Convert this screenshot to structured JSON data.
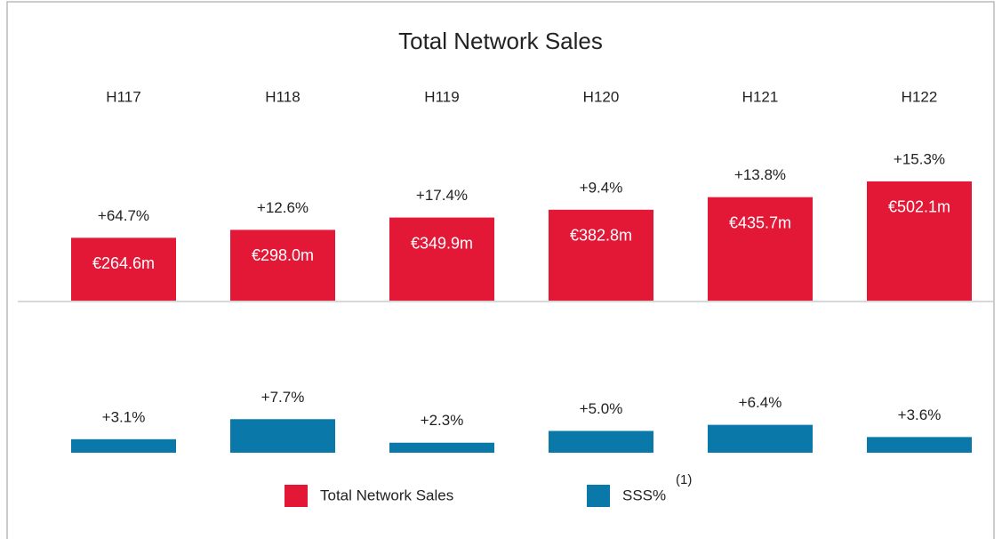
{
  "chart_data": {
    "type": "bar",
    "title": "Total Network Sales",
    "categories": [
      "H117",
      "H118",
      "H119",
      "H120",
      "H121",
      "H122"
    ],
    "series": [
      {
        "name": "Total Network Sales",
        "color": "#e31837",
        "values": [
          264.6,
          298.0,
          349.9,
          382.8,
          435.7,
          502.1
        ],
        "value_labels": [
          "€264.6m",
          "€298.0m",
          "€349.9m",
          "€382.8m",
          "€435.7m",
          "€502.1m"
        ],
        "growth": [
          64.7,
          12.6,
          17.4,
          9.4,
          13.8,
          15.3
        ],
        "growth_labels": [
          "+64.7%",
          "+12.6%",
          "+17.4%",
          "+9.4%",
          "+13.8%",
          "+15.3%"
        ]
      },
      {
        "name": "SSS%",
        "color": "#0a78a8",
        "values": [
          3.1,
          7.7,
          2.3,
          5.0,
          6.4,
          3.6
        ],
        "value_labels": [
          "+3.1%",
          "+7.7%",
          "+2.3%",
          "+5.0%",
          "+6.4%",
          "+3.6%"
        ]
      }
    ],
    "legend_note": "(1)"
  }
}
